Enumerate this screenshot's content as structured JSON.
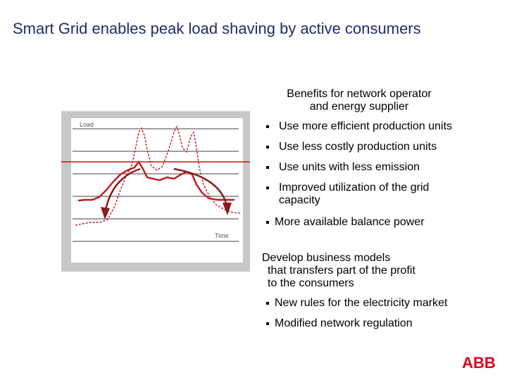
{
  "slide": {
    "title": "Smart Grid enables peak load shaving by active consumers",
    "chart": {
      "y_label": "Load",
      "x_label": "Time"
    },
    "benefits": {
      "heading_line1": "Benefits for network operator",
      "heading_line2": "and energy supplier",
      "items": [
        "Use more efficient production units",
        "Use less costly production units",
        "Use units with less emission",
        "Improved utilization of the grid capacity",
        "More available balance power"
      ]
    },
    "business": {
      "heading_line1": "Develop business models",
      "heading_line2": "that transfers part of the profit",
      "heading_line3": "to the consumers",
      "items": [
        "New rules for the electricity market",
        "Modified network regulation"
      ]
    },
    "logo": {
      "text": "ABB",
      "color": "#e2001a"
    }
  }
}
